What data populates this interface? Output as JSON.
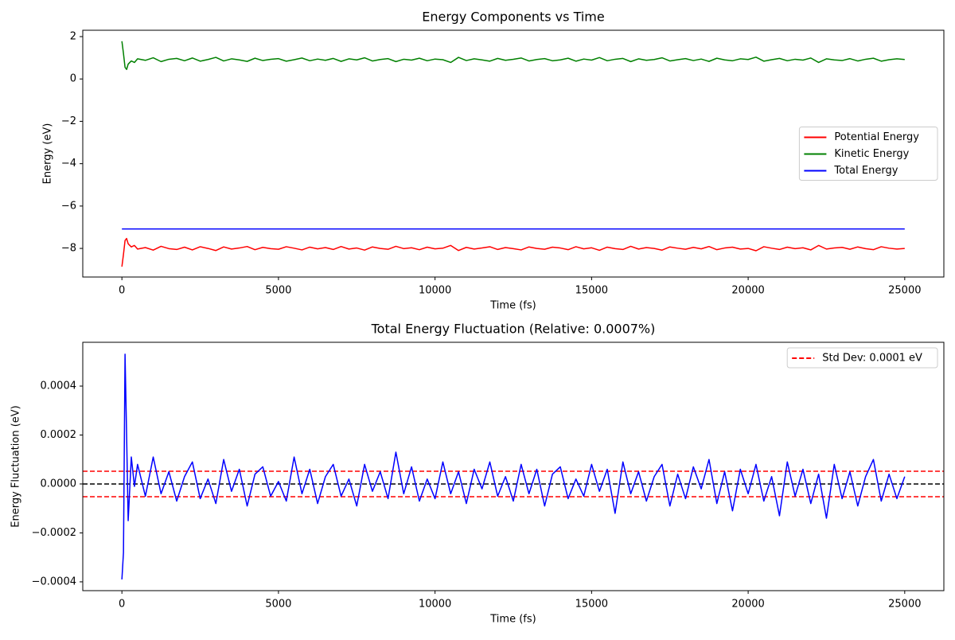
{
  "chart_data": [
    {
      "type": "line",
      "title": "Energy Components vs Time",
      "xlabel": "Time (fs)",
      "ylabel": "Energy (eV)",
      "x": [
        0,
        50,
        100,
        150,
        200,
        300,
        400,
        500,
        750,
        1000,
        1250,
        1500,
        1750,
        2000,
        2250,
        2500,
        2750,
        3000,
        3250,
        3500,
        3750,
        4000,
        4250,
        4500,
        4750,
        5000,
        5250,
        5500,
        5750,
        6000,
        6250,
        6500,
        6750,
        7000,
        7250,
        7500,
        7750,
        8000,
        8250,
        8500,
        8750,
        9000,
        9250,
        9500,
        9750,
        10000,
        10250,
        10500,
        10750,
        11000,
        11250,
        11500,
        11750,
        12000,
        12250,
        12500,
        12750,
        13000,
        13250,
        13500,
        13750,
        14000,
        14250,
        14500,
        14750,
        15000,
        15250,
        15500,
        15750,
        16000,
        16250,
        16500,
        16750,
        17000,
        17250,
        17500,
        17750,
        18000,
        18250,
        18500,
        18750,
        19000,
        19250,
        19500,
        19750,
        20000,
        20250,
        20500,
        20750,
        21000,
        21250,
        21500,
        21750,
        22000,
        22250,
        22500,
        22750,
        23000,
        23250,
        23500,
        23750,
        24000,
        24250,
        24500,
        24750,
        25000
      ],
      "series": [
        {
          "name": "Potential Energy",
          "color": "#ff0000",
          "values": [
            -8.86,
            -8.28,
            -7.63,
            -7.53,
            -7.78,
            -7.93,
            -7.86,
            -8.03,
            -7.96,
            -8.08,
            -7.9,
            -8.01,
            -8.05,
            -7.94,
            -8.07,
            -7.92,
            -8.0,
            -8.1,
            -7.93,
            -8.03,
            -7.98,
            -7.91,
            -8.06,
            -7.95,
            -8.01,
            -8.04,
            -7.92,
            -7.99,
            -8.07,
            -7.94,
            -8.02,
            -7.96,
            -8.05,
            -7.91,
            -8.03,
            -7.98,
            -8.08,
            -7.93,
            -8.0,
            -8.04,
            -7.9,
            -8.01,
            -7.97,
            -8.06,
            -7.94,
            -8.02,
            -7.99,
            -7.86,
            -8.1,
            -7.95,
            -8.03,
            -7.98,
            -7.92,
            -8.05,
            -7.96,
            -8.01,
            -8.07,
            -7.93,
            -8.0,
            -8.04,
            -7.94,
            -7.98,
            -8.06,
            -7.92,
            -8.02,
            -7.97,
            -8.09,
            -7.94,
            -8.01,
            -8.05,
            -7.9,
            -8.03,
            -7.96,
            -8.0,
            -8.08,
            -7.93,
            -7.99,
            -8.04,
            -7.95,
            -8.02,
            -7.91,
            -8.06,
            -7.98,
            -7.94,
            -8.03,
            -8.0,
            -8.11,
            -7.92,
            -7.99,
            -8.05,
            -7.94,
            -8.01,
            -7.97,
            -8.07,
            -7.86,
            -8.03,
            -7.98,
            -7.95,
            -8.04,
            -7.93,
            -8.01,
            -8.06,
            -7.92,
            -7.99,
            -8.03,
            -8.0
          ]
        },
        {
          "name": "Kinetic Energy",
          "color": "#008000",
          "values": [
            1.78,
            1.2,
            0.55,
            0.45,
            0.7,
            0.85,
            0.78,
            0.95,
            0.88,
            1.0,
            0.82,
            0.93,
            0.97,
            0.86,
            0.99,
            0.84,
            0.92,
            1.02,
            0.85,
            0.95,
            0.9,
            0.83,
            0.98,
            0.87,
            0.93,
            0.96,
            0.84,
            0.91,
            0.99,
            0.86,
            0.94,
            0.88,
            0.97,
            0.83,
            0.95,
            0.9,
            1.0,
            0.85,
            0.92,
            0.96,
            0.82,
            0.93,
            0.89,
            0.98,
            0.86,
            0.94,
            0.91,
            0.78,
            1.02,
            0.87,
            0.95,
            0.9,
            0.84,
            0.97,
            0.88,
            0.93,
            0.99,
            0.85,
            0.92,
            0.96,
            0.86,
            0.9,
            0.98,
            0.84,
            0.94,
            0.89,
            1.01,
            0.86,
            0.93,
            0.97,
            0.82,
            0.95,
            0.88,
            0.92,
            1.0,
            0.85,
            0.91,
            0.96,
            0.87,
            0.94,
            0.83,
            0.98,
            0.9,
            0.86,
            0.95,
            0.92,
            1.03,
            0.84,
            0.91,
            0.97,
            0.86,
            0.93,
            0.89,
            0.99,
            0.78,
            0.95,
            0.9,
            0.87,
            0.96,
            0.85,
            0.93,
            0.98,
            0.84,
            0.91,
            0.95,
            0.92
          ]
        },
        {
          "name": "Total Energy",
          "color": "#0000ff",
          "values": [
            -7.08,
            -7.08,
            -7.08,
            -7.08,
            -7.08,
            -7.08,
            -7.08,
            -7.08,
            -7.08,
            -7.08,
            -7.08,
            -7.08,
            -7.08,
            -7.08,
            -7.08,
            -7.08,
            -7.08,
            -7.08,
            -7.08,
            -7.08,
            -7.08,
            -7.08,
            -7.08,
            -7.08,
            -7.08,
            -7.08,
            -7.08,
            -7.08,
            -7.08,
            -7.08,
            -7.08,
            -7.08,
            -7.08,
            -7.08,
            -7.08,
            -7.08,
            -7.08,
            -7.08,
            -7.08,
            -7.08,
            -7.08,
            -7.08,
            -7.08,
            -7.08,
            -7.08,
            -7.08,
            -7.08,
            -7.08,
            -7.08,
            -7.08,
            -7.08,
            -7.08,
            -7.08,
            -7.08,
            -7.08,
            -7.08,
            -7.08,
            -7.08,
            -7.08,
            -7.08,
            -7.08,
            -7.08,
            -7.08,
            -7.08,
            -7.08,
            -7.08,
            -7.08,
            -7.08,
            -7.08,
            -7.08,
            -7.08,
            -7.08,
            -7.08,
            -7.08,
            -7.08,
            -7.08,
            -7.08,
            -7.08,
            -7.08,
            -7.08,
            -7.08,
            -7.08,
            -7.08,
            -7.08,
            -7.08,
            -7.08,
            -7.08,
            -7.08,
            -7.08,
            -7.08,
            -7.08,
            -7.08,
            -7.08,
            -7.08,
            -7.08,
            -7.08,
            -7.08,
            -7.08,
            -7.08,
            -7.08,
            -7.08,
            -7.08,
            -7.08,
            -7.08,
            -7.08,
            -7.08
          ]
        }
      ],
      "xlim": [
        -1250,
        26250
      ],
      "xticks": [
        0,
        5000,
        10000,
        15000,
        20000,
        25000
      ],
      "ylim": [
        -9.35,
        2.3
      ],
      "yticks": [
        {
          "value": -8,
          "label": "−8"
        },
        {
          "value": -6,
          "label": "−6"
        },
        {
          "value": -4,
          "label": "−4"
        },
        {
          "value": -2,
          "label": "−2"
        },
        0,
        2
      ],
      "legend": "center right",
      "grid": false
    },
    {
      "type": "line",
      "title": "Total Energy Fluctuation (Relative: 0.0007%)",
      "xlabel": "Time (fs)",
      "ylabel": "Energy Fluctuation (eV)",
      "x": [
        0,
        50,
        100,
        150,
        200,
        300,
        400,
        500,
        750,
        1000,
        1250,
        1500,
        1750,
        2000,
        2250,
        2500,
        2750,
        3000,
        3250,
        3500,
        3750,
        4000,
        4250,
        4500,
        4750,
        5000,
        5250,
        5500,
        5750,
        6000,
        6250,
        6500,
        6750,
        7000,
        7250,
        7500,
        7750,
        8000,
        8250,
        8500,
        8750,
        9000,
        9250,
        9500,
        9750,
        10000,
        10250,
        10500,
        10750,
        11000,
        11250,
        11500,
        11750,
        12000,
        12250,
        12500,
        12750,
        13000,
        13250,
        13500,
        13750,
        14000,
        14250,
        14500,
        14750,
        15000,
        15250,
        15500,
        15750,
        16000,
        16250,
        16500,
        16750,
        17000,
        17250,
        17500,
        17750,
        18000,
        18250,
        18500,
        18750,
        19000,
        19250,
        19500,
        19750,
        20000,
        20250,
        20500,
        20750,
        21000,
        21250,
        21500,
        21750,
        22000,
        22250,
        22500,
        22750,
        23000,
        23250,
        23500,
        23750,
        24000,
        24250,
        24500,
        24750,
        25000
      ],
      "series": [
        {
          "color": "#0000ff",
          "values": [
            -0.00039,
            -0.00028,
            0.00053,
            0.0002,
            -0.00015,
            0.00011,
            -1e-05,
            8e-05,
            -5e-05,
            0.00011,
            -4e-05,
            5e-05,
            -7e-05,
            3e-05,
            9e-05,
            -6e-05,
            2e-05,
            -8e-05,
            0.0001,
            -3e-05,
            6e-05,
            -9e-05,
            4e-05,
            7e-05,
            -5e-05,
            1e-05,
            -7e-05,
            0.00011,
            -4e-05,
            6e-05,
            -8e-05,
            3e-05,
            8e-05,
            -5e-05,
            2e-05,
            -9e-05,
            8e-05,
            -3e-05,
            5e-05,
            -6e-05,
            0.00013,
            -4e-05,
            7e-05,
            -7e-05,
            2e-05,
            -6e-05,
            9e-05,
            -4e-05,
            5e-05,
            -8e-05,
            6e-05,
            -2e-05,
            9e-05,
            -5e-05,
            3e-05,
            -7e-05,
            8e-05,
            -4e-05,
            6e-05,
            -9e-05,
            4e-05,
            7e-05,
            -6e-05,
            2e-05,
            -5e-05,
            8e-05,
            -3e-05,
            6e-05,
            -0.00012,
            9e-05,
            -4e-05,
            5e-05,
            -7e-05,
            3e-05,
            8e-05,
            -9e-05,
            4e-05,
            -6e-05,
            7e-05,
            -2e-05,
            0.0001,
            -8e-05,
            5e-05,
            -0.00011,
            6e-05,
            -4e-05,
            8e-05,
            -7e-05,
            3e-05,
            -0.00013,
            9e-05,
            -5e-05,
            6e-05,
            -8e-05,
            4e-05,
            -0.00014,
            8e-05,
            -6e-05,
            5e-05,
            -9e-05,
            3e-05,
            0.0001,
            -7e-05,
            4e-05,
            -6e-05,
            3e-05
          ]
        }
      ],
      "reference_lines": [
        {
          "name": "Std Dev: 0.0001 eV",
          "color": "#ff0000",
          "dashed": true,
          "values": [
            5.2e-05,
            -5.2e-05
          ]
        },
        {
          "color": "#000000",
          "dashed": true,
          "values": [
            0
          ]
        }
      ],
      "xlim": [
        -1250,
        26250
      ],
      "xticks": [
        0,
        5000,
        10000,
        15000,
        20000,
        25000
      ],
      "ylim": [
        -0.000436,
        0.000579
      ],
      "yticks": [
        {
          "value": -0.0004,
          "label": "−0.0004"
        },
        {
          "value": -0.0002,
          "label": "−0.0002"
        },
        {
          "value": 0,
          "label": "0.0000"
        },
        0.0002,
        0.0004
      ],
      "legend": "upper right",
      "grid": false
    }
  ]
}
